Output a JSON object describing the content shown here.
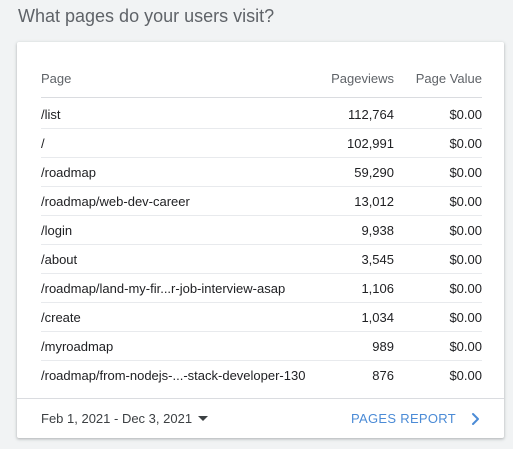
{
  "heading": "What pages do your users visit?",
  "table": {
    "columns": {
      "page": "Page",
      "pageviews": "Pageviews",
      "page_value": "Page Value"
    },
    "rows": [
      {
        "page": "/list",
        "pageviews": "112,764",
        "value": "$0.00"
      },
      {
        "page": "/",
        "pageviews": "102,991",
        "value": "$0.00"
      },
      {
        "page": "/roadmap",
        "pageviews": "59,290",
        "value": "$0.00"
      },
      {
        "page": "/roadmap/web-dev-career",
        "pageviews": "13,012",
        "value": "$0.00"
      },
      {
        "page": "/login",
        "pageviews": "9,938",
        "value": "$0.00"
      },
      {
        "page": "/about",
        "pageviews": "3,545",
        "value": "$0.00"
      },
      {
        "page": "/roadmap/land-my-fir...r-job-interview-asap",
        "pageviews": "1,106",
        "value": "$0.00"
      },
      {
        "page": "/create",
        "pageviews": "1,034",
        "value": "$0.00"
      },
      {
        "page": "/myroadmap",
        "pageviews": "989",
        "value": "$0.00"
      },
      {
        "page": "/roadmap/from-nodejs-...-stack-developer-130",
        "pageviews": "876",
        "value": "$0.00"
      }
    ]
  },
  "footer": {
    "date_range": "Feb 1, 2021 - Dec 3, 2021",
    "report_link": "PAGES REPORT",
    "icons": {
      "dropdown": "caret-down-icon",
      "link": "chevron-right-icon"
    },
    "link_color": "#4b8bd6"
  }
}
